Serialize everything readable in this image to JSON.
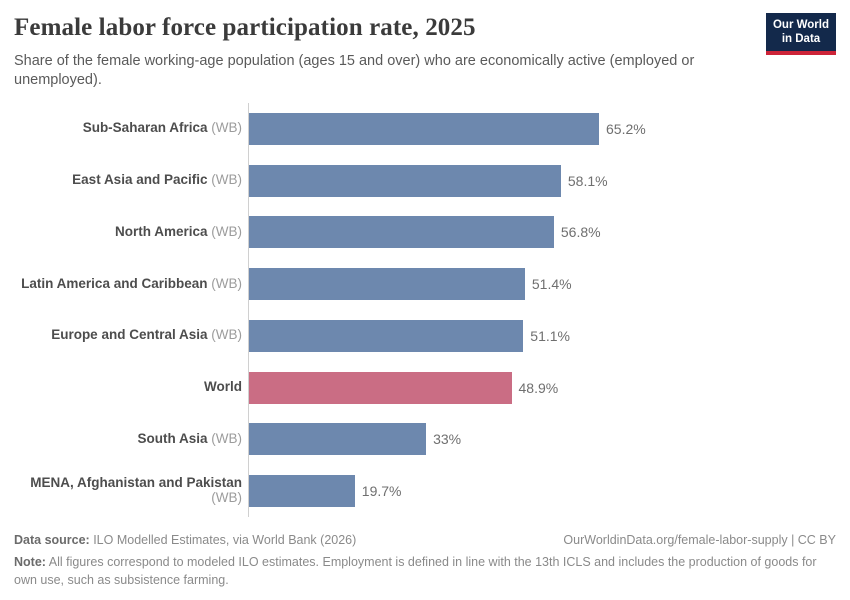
{
  "header": {
    "title": "Female labor force participation rate, 2025",
    "subtitle": "Share of the female working-age population (ages 15 and over) who are economically active (employed or unemployed).",
    "logo": {
      "line1": "Our World",
      "line2": "in Data"
    }
  },
  "chart_data": {
    "type": "bar",
    "orientation": "horizontal",
    "title": "Female labor force participation rate, 2025",
    "subtitle": "Share of the female working-age population (ages 15 and over) who are economically active (employed or unemployed).",
    "categories": [
      "Sub-Saharan Africa (WB)",
      "East Asia and Pacific (WB)",
      "North America (WB)",
      "Latin America and Caribbean (WB)",
      "Europe and Central Asia (WB)",
      "World",
      "South Asia (WB)",
      "MENA, Afghanistan and Pakistan (WB)"
    ],
    "values": [
      65.2,
      58.1,
      56.8,
      51.4,
      51.1,
      48.9,
      33,
      19.7
    ],
    "value_labels": [
      "65.2%",
      "58.1%",
      "56.8%",
      "51.4%",
      "51.1%",
      "48.9%",
      "33%",
      "19.7%"
    ],
    "unit": "%",
    "xlim": [
      0,
      65.2
    ],
    "grid": false,
    "legend": "none",
    "bar_color": "#6d88ae",
    "highlight_color": "#ca6d84",
    "axis_color": "#d0d0d0",
    "rows": [
      {
        "name": "Sub-Saharan Africa",
        "suffix": "(WB)",
        "value": 65.2,
        "display": "65.2%",
        "highlight": false
      },
      {
        "name": "East Asia and Pacific",
        "suffix": "(WB)",
        "value": 58.1,
        "display": "58.1%",
        "highlight": false
      },
      {
        "name": "North America",
        "suffix": "(WB)",
        "value": 56.8,
        "display": "56.8%",
        "highlight": false
      },
      {
        "name": "Latin America and Caribbean",
        "suffix": "(WB)",
        "value": 51.4,
        "display": "51.4%",
        "highlight": false
      },
      {
        "name": "Europe and Central Asia",
        "suffix": "(WB)",
        "value": 51.1,
        "display": "51.1%",
        "highlight": false
      },
      {
        "name": "World",
        "suffix": "",
        "value": 48.9,
        "display": "48.9%",
        "highlight": true
      },
      {
        "name": "South Asia",
        "suffix": "(WB)",
        "value": 33,
        "display": "33%",
        "highlight": false
      },
      {
        "name": "MENA, Afghanistan and Pakistan",
        "suffix": "(WB)",
        "value": 19.7,
        "display": "19.7%",
        "highlight": false
      }
    ]
  },
  "footer": {
    "datasource_label": "Data source:",
    "datasource_text": " ILO Modelled Estimates, via World Bank (2026)",
    "attribution": "OurWorldinData.org/female-labor-supply | CC BY",
    "note_label": "Note:",
    "note_text": " All figures correspond to modeled ILO estimates. Employment is defined in line with the 13th ICLS and includes the production of goods for own use, such as subsistence farming."
  }
}
